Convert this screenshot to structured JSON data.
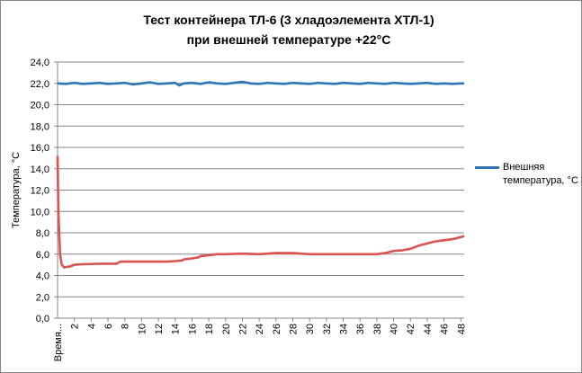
{
  "chart_data": {
    "type": "line",
    "title_line1": "Тест контейнера ТЛ-6 (3 хладоэлемента ХТЛ-1)",
    "title_line2": "при внешней температуре +22°С",
    "ylabel": "Температура, °С",
    "xlabel": "",
    "ylim": [
      0,
      24
    ],
    "y_ticks": [
      "0,0",
      "2,0",
      "4,0",
      "6,0",
      "8,0",
      "10,0",
      "12,0",
      "14,0",
      "16,0",
      "18,0",
      "20,0",
      "22,0",
      "24,0"
    ],
    "x_first_label": "Время...",
    "x_ticks": [
      2,
      4,
      6,
      8,
      10,
      12,
      14,
      16,
      18,
      20,
      22,
      24,
      26,
      28,
      30,
      32,
      34,
      36,
      38,
      40,
      42,
      44,
      46,
      48
    ],
    "x_range": [
      0,
      48.4
    ],
    "grid": "horizontal",
    "legend_position": "right",
    "series": [
      {
        "name": "Внешняя температура, °С",
        "color": "#2E75B6",
        "legend": true,
        "x": [
          0,
          1,
          2,
          3,
          4,
          5,
          6,
          7,
          8,
          9,
          10,
          11,
          12,
          13,
          14,
          14.5,
          15,
          16,
          17,
          18,
          19,
          20,
          21,
          21.5,
          22,
          23,
          24,
          25,
          26,
          27,
          28,
          29,
          30,
          31,
          32,
          33,
          34,
          35,
          36,
          37,
          38,
          39,
          40,
          41,
          42,
          43,
          44,
          45,
          46,
          47,
          48,
          48.4
        ],
        "y": [
          22.0,
          21.95,
          22.05,
          21.95,
          22.0,
          22.05,
          21.95,
          22.0,
          22.05,
          21.9,
          22.0,
          22.1,
          21.95,
          22.0,
          22.05,
          21.8,
          22.0,
          22.05,
          21.95,
          22.1,
          22.0,
          21.95,
          22.05,
          22.1,
          22.15,
          22.0,
          21.95,
          22.05,
          22.0,
          21.95,
          22.05,
          22.0,
          21.95,
          22.05,
          22.0,
          21.95,
          22.05,
          22.0,
          21.95,
          22.05,
          22.0,
          21.95,
          22.05,
          22.0,
          21.95,
          22.0,
          22.05,
          21.95,
          22.0,
          21.95,
          22.0,
          22.0
        ]
      },
      {
        "name": "",
        "color": "#D9534F",
        "legend": false,
        "x": [
          0,
          0.1,
          0.3,
          0.5,
          0.8,
          1,
          1.5,
          2,
          3,
          5,
          7,
          7.5,
          9,
          11,
          13,
          14,
          14.8,
          15,
          16,
          16.8,
          17,
          18,
          19,
          20,
          22,
          24,
          26,
          28,
          30,
          32,
          34,
          36,
          38,
          39,
          40,
          41,
          42,
          43,
          44,
          45,
          46,
          47,
          48,
          48.4
        ],
        "y": [
          15.2,
          10.0,
          5.9,
          5.0,
          4.75,
          4.8,
          4.85,
          5.0,
          5.05,
          5.1,
          5.1,
          5.3,
          5.3,
          5.3,
          5.3,
          5.35,
          5.4,
          5.5,
          5.6,
          5.7,
          5.8,
          5.9,
          6.0,
          6.0,
          6.05,
          6.0,
          6.1,
          6.1,
          6.0,
          6.0,
          6.0,
          6.0,
          6.0,
          6.1,
          6.3,
          6.35,
          6.5,
          6.8,
          7.0,
          7.2,
          7.3,
          7.4,
          7.6,
          7.7
        ]
      }
    ]
  }
}
